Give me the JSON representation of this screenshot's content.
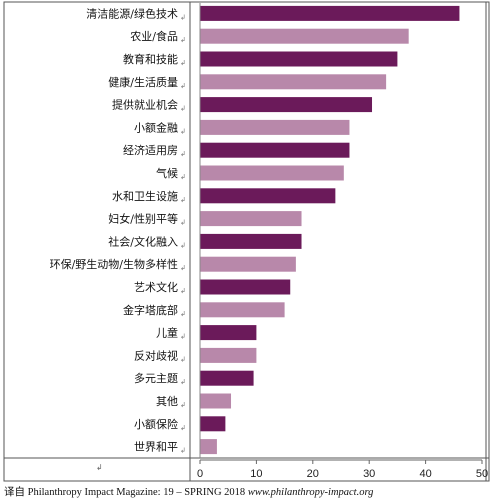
{
  "chart_data": {
    "type": "bar",
    "orientation": "horizontal",
    "categories": [
      "清洁能源/绿色技术",
      "农业/食品",
      "教育和技能",
      "健康/生活质量",
      "提供就业机会",
      "小额金融",
      "经济适用房",
      "气候",
      "水和卫生设施",
      "妇女/性别平等",
      "社会/文化融入",
      "环保/野生动物/生物多样性",
      "艺术文化",
      "金字塔底部",
      "儿童",
      "反对歧视",
      "多元主题",
      "其他",
      "小额保险",
      "世界和平"
    ],
    "values": [
      46,
      37,
      35,
      33,
      30.5,
      26.5,
      26.5,
      25.5,
      24,
      18,
      18,
      17,
      16,
      15,
      10,
      10,
      9.5,
      5.5,
      4.5,
      3
    ],
    "bar_colors": [
      "#6b1a5a",
      "#b888aa",
      "#6b1a5a",
      "#b888aa",
      "#6b1a5a",
      "#b888aa",
      "#6b1a5a",
      "#b888aa",
      "#6b1a5a",
      "#b888aa",
      "#6b1a5a",
      "#b888aa",
      "#6b1a5a",
      "#b888aa",
      "#6b1a5a",
      "#b888aa",
      "#6b1a5a",
      "#b888aa",
      "#6b1a5a",
      "#b888aa"
    ],
    "xlim": [
      0,
      50
    ],
    "xticks": [
      0,
      10,
      20,
      30,
      40,
      50
    ],
    "xtick_labels": [
      "0",
      "10",
      "20",
      "30",
      "40",
      "50"
    ],
    "grid": false,
    "legend": "none"
  },
  "source": {
    "prefix": "译自 Philanthropy Impact Magazine: 19 – SPRING 2018",
    "url": "www.philanthropy-impact.org"
  }
}
